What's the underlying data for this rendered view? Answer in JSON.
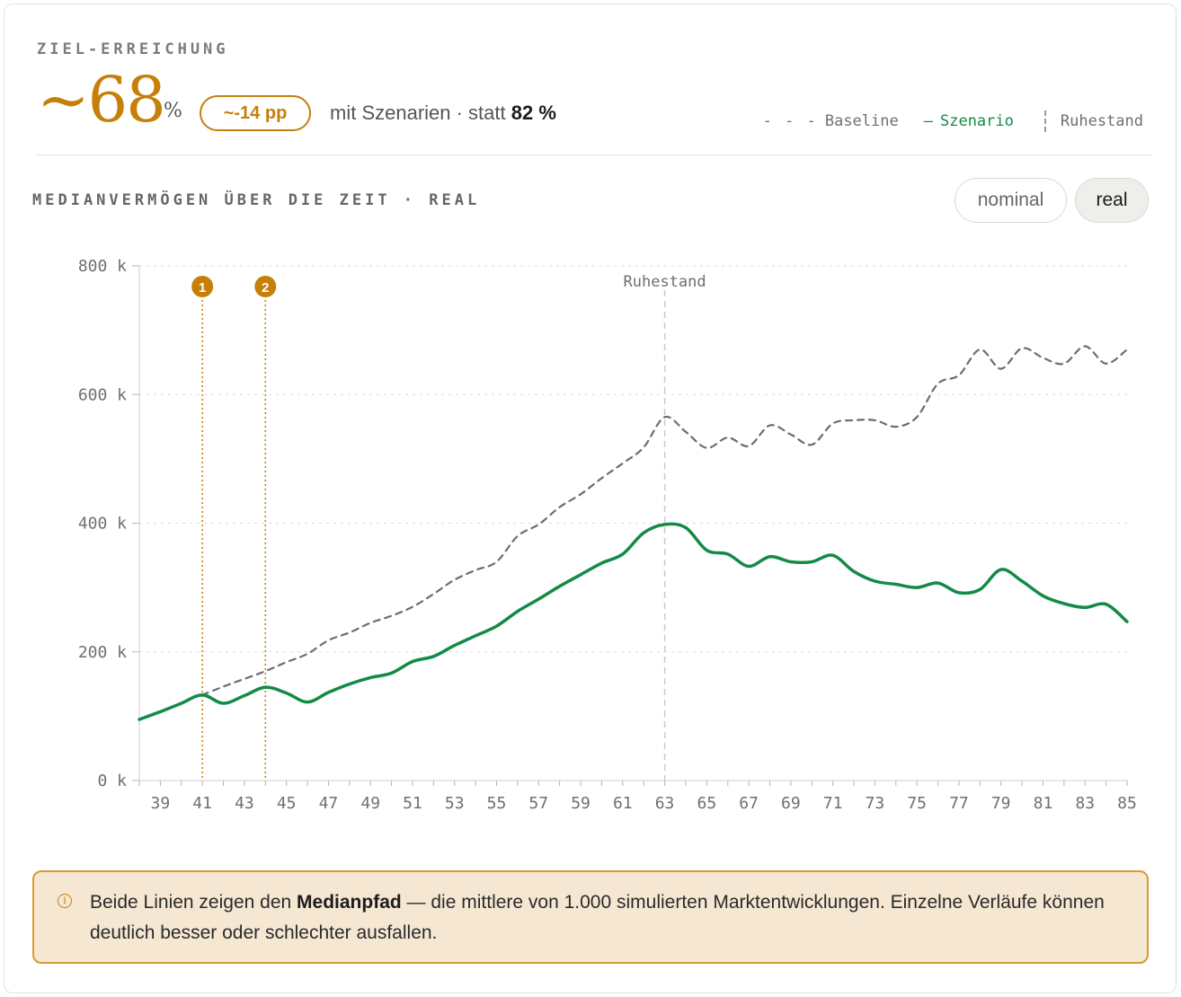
{
  "header": {
    "eyebrow": "ZIEL-ERREICHUNG",
    "value": "~68",
    "unit": "%",
    "delta": "~-14 pp",
    "compare_prefix": "mit Szenarien · statt",
    "compare_value": "82 %"
  },
  "legend": {
    "baseline_mark": "- - -",
    "baseline": "Baseline",
    "scenario_mark": "—",
    "scenario": "Szenario",
    "retirement": "Ruhestand"
  },
  "section": {
    "title": "MEDIANVERMÖGEN ÜBER DIE ZEIT · REAL",
    "toggle_nominal": "nominal",
    "toggle_real": "real",
    "toggle_selected": "real"
  },
  "colors": {
    "accent": "#c67f09",
    "scenario": "#138a46",
    "baseline": "#6b6b7b",
    "note_bg": "#f6e7d3",
    "note_border": "#d89a32"
  },
  "chart_data": {
    "type": "line",
    "x_min": 38,
    "x_max": 85,
    "ylim": [
      0,
      800
    ],
    "y_ticks": [
      0,
      200,
      400,
      600,
      800
    ],
    "y_tick_labels": [
      "0 k",
      "200 k",
      "400 k",
      "600 k",
      "800 k"
    ],
    "x_tick_labels": [
      "39",
      "41",
      "43",
      "45",
      "47",
      "49",
      "51",
      "53",
      "55",
      "57",
      "59",
      "61",
      "63",
      "65",
      "67",
      "69",
      "71",
      "73",
      "75",
      "77",
      "79",
      "81",
      "83",
      "85"
    ],
    "grid": true,
    "retirement": {
      "age": 63,
      "label": "Ruhestand"
    },
    "markers": [
      {
        "label": "1",
        "age": 41
      },
      {
        "label": "2",
        "age": 44
      }
    ],
    "series": [
      {
        "name": "Baseline",
        "style": "dashed",
        "x": [
          41,
          42,
          43,
          44,
          45,
          46,
          47,
          48,
          49,
          50,
          51,
          52,
          53,
          54,
          55,
          56,
          57,
          58,
          59,
          60,
          61,
          62,
          63,
          64,
          65,
          66,
          67,
          68,
          69,
          70,
          71,
          72,
          73,
          74,
          75,
          76,
          77,
          78,
          79,
          80,
          81,
          82,
          83,
          84,
          85
        ],
        "values": [
          133,
          146,
          158,
          170,
          184,
          197,
          218,
          230,
          245,
          256,
          270,
          290,
          312,
          327,
          340,
          380,
          398,
          425,
          445,
          470,
          493,
          518,
          565,
          542,
          517,
          533,
          520,
          552,
          538,
          522,
          555,
          560,
          560,
          550,
          565,
          617,
          630,
          670,
          640,
          672,
          657,
          648,
          675,
          648,
          670
        ]
      },
      {
        "name": "Szenario",
        "style": "solid",
        "x": [
          38,
          39,
          40,
          41,
          42,
          43,
          44,
          45,
          46,
          47,
          48,
          49,
          50,
          51,
          52,
          53,
          54,
          55,
          56,
          57,
          58,
          59,
          60,
          61,
          62,
          63,
          64,
          65,
          66,
          67,
          68,
          69,
          70,
          71,
          72,
          73,
          74,
          75,
          76,
          77,
          78,
          79,
          80,
          81,
          82,
          83,
          84,
          85
        ],
        "values": [
          95,
          107,
          120,
          133,
          120,
          132,
          145,
          136,
          122,
          137,
          150,
          160,
          167,
          185,
          193,
          210,
          225,
          240,
          263,
          282,
          302,
          320,
          338,
          352,
          385,
          398,
          393,
          358,
          352,
          333,
          348,
          340,
          340,
          350,
          325,
          310,
          305,
          300,
          307,
          292,
          297,
          328,
          310,
          287,
          275,
          269,
          274,
          247
        ]
      }
    ]
  },
  "note": {
    "text_before": "Beide Linien zeigen den",
    "text_bold": "Medianpfad",
    "text_after": "— die mittlere von 1.000 simulierten Marktentwicklungen. Einzelne Verläufe können deutlich besser oder schlechter ausfallen."
  }
}
